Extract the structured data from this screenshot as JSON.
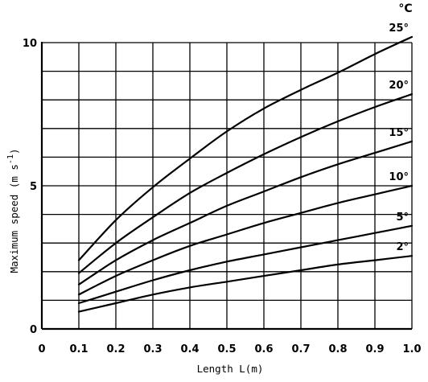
{
  "chart_data": {
    "type": "line",
    "xlabel": "Length L(m)",
    "ylabel": "Maximum speed (m s",
    "ylabel_exponent": "-1",
    "ylabel_close": ")",
    "series_unit_label": "°C",
    "xlim": [
      0,
      1.0
    ],
    "ylim": [
      0,
      10
    ],
    "grid": true,
    "x_ticks": [
      "0",
      "0.1",
      "0.2",
      "0.3",
      "0.4",
      "0.5",
      "0.6",
      "0.7",
      "0.8",
      "0.9",
      "1.0"
    ],
    "y_ticks": [
      "0",
      "5",
      "10"
    ],
    "series": [
      {
        "name": "2°",
        "x": [
          0.1,
          0.2,
          0.3,
          0.4,
          0.5,
          0.6,
          0.7,
          0.8,
          0.9,
          1.0
        ],
        "y": [
          0.6,
          0.9,
          1.2,
          1.45,
          1.65,
          1.85,
          2.05,
          2.25,
          2.4,
          2.55
        ]
      },
      {
        "name": "5°",
        "x": [
          0.1,
          0.2,
          0.3,
          0.4,
          0.5,
          0.6,
          0.7,
          0.8,
          0.9,
          1.0
        ],
        "y": [
          0.9,
          1.3,
          1.7,
          2.05,
          2.35,
          2.6,
          2.85,
          3.1,
          3.35,
          3.6
        ]
      },
      {
        "name": "10°",
        "x": [
          0.1,
          0.2,
          0.3,
          0.4,
          0.5,
          0.6,
          0.7,
          0.8,
          0.9,
          1.0
        ],
        "y": [
          1.2,
          1.85,
          2.4,
          2.9,
          3.3,
          3.7,
          4.05,
          4.4,
          4.7,
          5.0
        ]
      },
      {
        "name": "15°",
        "x": [
          0.1,
          0.2,
          0.3,
          0.4,
          0.5,
          0.6,
          0.7,
          0.8,
          0.9,
          1.0
        ],
        "y": [
          1.55,
          2.4,
          3.1,
          3.7,
          4.3,
          4.8,
          5.3,
          5.75,
          6.15,
          6.55
        ]
      },
      {
        "name": "20°",
        "x": [
          0.1,
          0.2,
          0.3,
          0.4,
          0.5,
          0.6,
          0.7,
          0.8,
          0.9,
          1.0
        ],
        "y": [
          1.95,
          3.0,
          3.9,
          4.75,
          5.45,
          6.1,
          6.7,
          7.25,
          7.75,
          8.2
        ]
      },
      {
        "name": "25°",
        "x": [
          0.1,
          0.2,
          0.3,
          0.4,
          0.5,
          0.6,
          0.7,
          0.8,
          0.9,
          1.0
        ],
        "y": [
          2.4,
          3.8,
          4.95,
          5.95,
          6.9,
          7.7,
          8.35,
          8.95,
          9.6,
          10.2
        ]
      }
    ]
  }
}
